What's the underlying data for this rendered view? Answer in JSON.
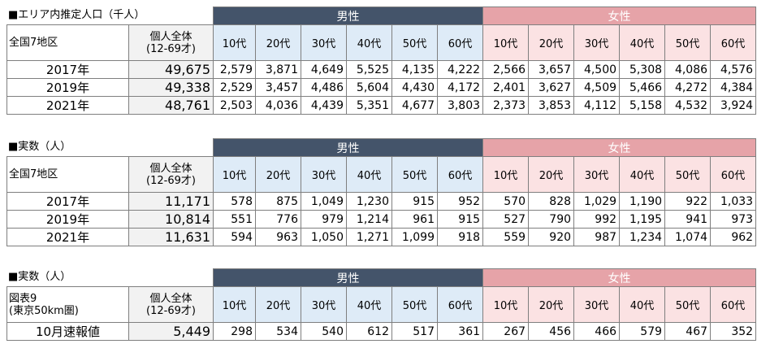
{
  "sections": [
    {
      "title": "■エリア内推定人口（千人）",
      "row_header": "全国7地区",
      "total_header": "個人全体\n(12-69才)",
      "male_label": "男性",
      "female_label": "女性",
      "age_groups": [
        "10代",
        "20代",
        "30代",
        "40代",
        "50代",
        "60代"
      ],
      "rows": [
        {
          "label": "2017年",
          "total": "49,675",
          "male": [
            "2,579",
            "3,871",
            "4,649",
            "5,525",
            "4,135",
            "4,222"
          ],
          "female": [
            "2,566",
            "3,657",
            "4,500",
            "5,308",
            "4,086",
            "4,576"
          ]
        },
        {
          "label": "2019年",
          "total": "49,338",
          "male": [
            "2,529",
            "3,457",
            "4,486",
            "5,604",
            "4,430",
            "4,172"
          ],
          "female": [
            "2,401",
            "3,627",
            "4,509",
            "5,466",
            "4,272",
            "4,384"
          ]
        },
        {
          "label": "2021年",
          "total": "48,761",
          "male": [
            "2,503",
            "4,036",
            "4,439",
            "5,351",
            "4,677",
            "3,803"
          ],
          "female": [
            "2,373",
            "3,853",
            "4,112",
            "5,158",
            "4,532",
            "3,924"
          ]
        }
      ]
    },
    {
      "title": "■実数（人）",
      "row_header": "全国7地区",
      "total_header": "個人全体\n(12-69才)",
      "male_label": "男性",
      "female_label": "女性",
      "age_groups": [
        "10代",
        "20代",
        "30代",
        "40代",
        "50代",
        "60代"
      ],
      "rows": [
        {
          "label": "2017年",
          "total": "11,171",
          "male": [
            "578",
            "875",
            "1,049",
            "1,230",
            "915",
            "952"
          ],
          "female": [
            "570",
            "828",
            "1,029",
            "1,190",
            "922",
            "1,033"
          ]
        },
        {
          "label": "2019年",
          "total": "10,814",
          "male": [
            "551",
            "776",
            "979",
            "1,214",
            "961",
            "915"
          ],
          "female": [
            "527",
            "790",
            "992",
            "1,195",
            "941",
            "973"
          ]
        },
        {
          "label": "2021年",
          "total": "11,631",
          "male": [
            "594",
            "963",
            "1,050",
            "1,271",
            "1,099",
            "918"
          ],
          "female": [
            "559",
            "920",
            "987",
            "1,234",
            "1,074",
            "962"
          ]
        }
      ]
    },
    {
      "title": "■実数（人）",
      "row_header": "図表9\n(東京50km圏)",
      "total_header": "個人全体\n(12-69才)",
      "male_label": "男性",
      "female_label": "女性",
      "age_groups": [
        "10代",
        "20代",
        "30代",
        "40代",
        "50代",
        "60代"
      ],
      "rows": [
        {
          "label": "10月速報値",
          "total": "5,449",
          "male": [
            "298",
            "534",
            "540",
            "612",
            "517",
            "361"
          ],
          "female": [
            "267",
            "456",
            "466",
            "579",
            "467",
            "352"
          ]
        }
      ]
    }
  ]
}
